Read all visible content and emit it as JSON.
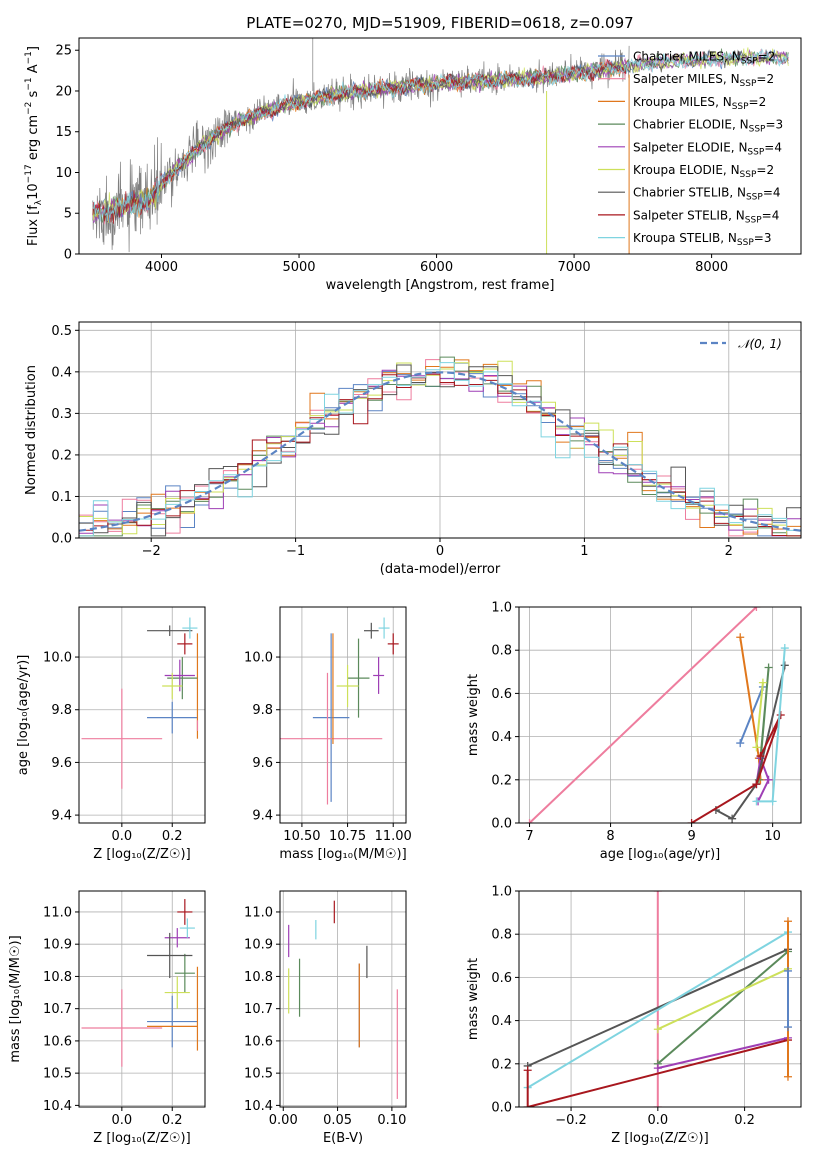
{
  "figure": {
    "title": "PLATE=0270, MJD=51909, FIBERID=0618, z=0.097"
  },
  "models": [
    {
      "name": "Chabrier MILES",
      "nssp": "2",
      "color": "#5b84c4"
    },
    {
      "name": "Salpeter MILES",
      "nssp": "2",
      "color": "#ee7d9e"
    },
    {
      "name": "Kroupa MILES",
      "nssp": "2",
      "color": "#e0771c"
    },
    {
      "name": "Chabrier ELODIE",
      "nssp": "3",
      "color": "#5b8a5b"
    },
    {
      "name": "Salpeter ELODIE",
      "nssp": "4",
      "color": "#9e3fb5"
    },
    {
      "name": "Kroupa ELODIE",
      "nssp": "2",
      "color": "#cde05a"
    },
    {
      "name": "Chabrier STELIB",
      "nssp": "4",
      "color": "#555555"
    },
    {
      "name": "Salpeter STELIB",
      "nssp": "4",
      "color": "#a8171e"
    },
    {
      "name": "Kroupa STELIB",
      "nssp": "3",
      "color": "#7fd4e0"
    }
  ],
  "data_color": "#7f7f7f",
  "chart_data": [
    {
      "id": "spectrum",
      "type": "line",
      "title": "PLATE=0270, MJD=51909, FIBERID=0618, z=0.097",
      "xlabel": "wavelength [Angstrom, rest frame]",
      "ylabel_main": "Flux [f",
      "ylabel_sub": "λ",
      "ylabel_rest": "10",
      "ylabel_exp1": "−17",
      "ylabel_units": " erg cm",
      "ylabel_exp2": "−2",
      "ylabel_s": " s",
      "ylabel_exp3": "−1",
      "ylabel_A": " A",
      "ylabel_exp4": "−1",
      "ylabel_end": "]",
      "xlim": [
        3400,
        8650
      ],
      "ylim": [
        0,
        26.5
      ],
      "xticks": [
        4000,
        5000,
        6000,
        7000,
        8000
      ],
      "yticks": [
        0,
        5,
        10,
        15,
        20,
        25
      ],
      "grid": false,
      "legend": "upper right",
      "legend_suffix_main": "N",
      "legend_suffix_sub": "SSP",
      "continuum_x": [
        3500,
        3600,
        3700,
        3800,
        3900,
        4000,
        4100,
        4200,
        4300,
        4400,
        4500,
        4600,
        4700,
        4800,
        4900,
        5000,
        5100,
        5200,
        5300,
        5400,
        5500,
        5600,
        5700,
        5800,
        5900,
        6000,
        6100,
        6200,
        6300,
        6400,
        6500,
        6600,
        6700,
        6800,
        6900,
        7000,
        7100,
        7200,
        7300,
        7400
      ],
      "continuum_y": [
        4.5,
        5.0,
        5.5,
        5.8,
        6.5,
        8.0,
        10.5,
        12.0,
        13.5,
        14.5,
        15.8,
        16.5,
        17.3,
        17.8,
        18.3,
        18.8,
        19.0,
        19.4,
        19.8,
        19.8,
        20.2,
        20.2,
        20.4,
        20.6,
        20.9,
        21.0,
        21.0,
        21.2,
        21.2,
        21.3,
        21.5,
        21.5,
        21.6,
        21.8,
        22.0,
        22.2,
        22.4,
        22.6,
        22.8,
        23.0
      ],
      "model_x": [
        3500,
        3700,
        3900,
        4100,
        4300,
        4500,
        4700,
        4900,
        5100,
        5300,
        5500,
        5700,
        5900,
        6100,
        6300,
        6500,
        6700,
        6900,
        7100,
        7300,
        7500,
        7700,
        7900,
        8100,
        8300,
        8500
      ],
      "model_y": [
        5.0,
        5.6,
        6.6,
        10.4,
        13.4,
        15.7,
        17.2,
        18.2,
        19.0,
        19.7,
        20.1,
        20.4,
        20.8,
        21.0,
        21.2,
        21.4,
        21.6,
        21.9,
        22.4,
        22.8,
        23.3,
        23.6,
        23.8,
        24.0,
        24.1,
        24.1
      ]
    },
    {
      "id": "residuals",
      "type": "histogram",
      "xlabel": "(data-model)/error",
      "ylabel": "Normed distribution",
      "xlim": [
        -2.5,
        2.5
      ],
      "ylim": [
        0,
        0.52
      ],
      "xticks": [
        -2,
        -1,
        0,
        1,
        2
      ],
      "xtick_labels": [
        "−2",
        "−1",
        "0",
        "1",
        "2"
      ],
      "yticks": [
        0.0,
        0.1,
        0.2,
        0.3,
        0.4,
        0.5
      ],
      "ytick_labels": [
        "0.0",
        "0.1",
        "0.2",
        "0.3",
        "0.4",
        "0.5"
      ],
      "grid": true,
      "legend": "upper right",
      "legend_label": "𝒩(0, 1)",
      "gaussian_color": "#5b84c4",
      "bin_edges_start": -2.5,
      "bin_width": 0.1
    },
    {
      "id": "age-vs-Z",
      "type": "errorbar",
      "xlabel": "Z [log₁₀(Z/Z☉)]",
      "ylabel": "age  [log₁₀(age/yr)]",
      "xlim": [
        -0.17,
        0.33
      ],
      "ylim": [
        9.37,
        10.19
      ],
      "xticks": [
        0.0,
        0.2
      ],
      "xtick_labels": [
        "0.0",
        "0.2"
      ],
      "yticks": [
        9.4,
        9.6,
        9.8,
        10.0
      ],
      "ytick_labels": [
        "9.4",
        "9.6",
        "9.8",
        "10.0"
      ],
      "grid": true,
      "points": [
        {
          "model": 0,
          "x": 0.2,
          "xerr": 0.1,
          "y": 9.77,
          "yerr": 0.06
        },
        {
          "model": 1,
          "x": 0.0,
          "xerr": 0.16,
          "y": 9.69,
          "yerr": 0.19
        },
        {
          "model": 2,
          "x": 0.3,
          "xerr": 0.0,
          "y": 9.89,
          "yerr": 0.2
        },
        {
          "model": 3,
          "x": 0.24,
          "xerr": 0.06,
          "y": 9.92,
          "yerr": 0.08
        },
        {
          "model": 4,
          "x": 0.23,
          "xerr": 0.06,
          "y": 9.93,
          "yerr": 0.06
        },
        {
          "model": 5,
          "x": 0.2,
          "xerr": 0.04,
          "y": 9.89,
          "yerr": 0.05
        },
        {
          "model": 6,
          "x": 0.19,
          "xerr": 0.09,
          "y": 10.1,
          "yerr": 0.02
        },
        {
          "model": 7,
          "x": 0.25,
          "xerr": 0.03,
          "y": 10.05,
          "yerr": 0.04
        },
        {
          "model": 8,
          "x": 0.27,
          "xerr": 0.03,
          "y": 10.11,
          "yerr": 0.04
        },
        {
          "model": 1,
          "x": 0.3,
          "xerr": 0.0,
          "y": 9.74,
          "yerr": 0.02
        }
      ]
    },
    {
      "id": "age-vs-mass",
      "type": "errorbar",
      "xlabel": "mass [log₁₀(M/M☉)]",
      "xlim": [
        10.38,
        11.07
      ],
      "ylim": [
        9.37,
        10.19
      ],
      "xticks": [
        10.5,
        10.75,
        11.0
      ],
      "xtick_labels": [
        "10.50",
        "10.75",
        "11.00"
      ],
      "yticks": [
        9.4,
        9.6,
        9.8,
        10.0
      ],
      "ytick_labels": [
        "9.4",
        "9.6",
        "9.8",
        "10.0"
      ],
      "grid": true,
      "points": [
        {
          "model": 0,
          "x": 10.66,
          "xerr": 0.1,
          "y": 9.77,
          "yerr": 0.32
        },
        {
          "model": 1,
          "x": 10.64,
          "xerr": 0.3,
          "y": 9.69,
          "yerr": 0.25
        },
        {
          "model": 2,
          "x": 10.67,
          "xerr": 0.0,
          "y": 9.88,
          "yerr": 0.21
        },
        {
          "model": 3,
          "x": 10.81,
          "xerr": 0.06,
          "y": 9.92,
          "yerr": 0.15
        },
        {
          "model": 4,
          "x": 10.92,
          "xerr": 0.03,
          "y": 9.93,
          "yerr": 0.07
        },
        {
          "model": 5,
          "x": 10.75,
          "xerr": 0.06,
          "y": 9.89,
          "yerr": 0.08
        },
        {
          "model": 6,
          "x": 10.88,
          "xerr": 0.04,
          "y": 10.1,
          "yerr": 0.03
        },
        {
          "model": 7,
          "x": 11.0,
          "xerr": 0.03,
          "y": 10.05,
          "yerr": 0.04
        },
        {
          "model": 8,
          "x": 10.95,
          "xerr": 0.03,
          "y": 10.11,
          "yerr": 0.04
        }
      ]
    },
    {
      "id": "massweight-vs-age",
      "type": "line",
      "xlabel": "age  [log₁₀(age/yr)]",
      "ylabel": "mass weight",
      "xlim": [
        6.87,
        10.35
      ],
      "ylim": [
        0,
        1.0
      ],
      "xticks": [
        7,
        8,
        9,
        10
      ],
      "xtick_labels": [
        "7",
        "8",
        "9",
        "10"
      ],
      "yticks": [
        0.0,
        0.2,
        0.4,
        0.6,
        0.8,
        1.0
      ],
      "ytick_labels": [
        "0.0",
        "0.2",
        "0.4",
        "0.6",
        "0.8",
        "1.0"
      ],
      "grid": true,
      "series": [
        {
          "model": 1,
          "x": [
            7.0,
            9.8
          ],
          "y": [
            0.0,
            1.0
          ]
        },
        {
          "model": 0,
          "x": [
            9.6,
            9.88
          ],
          "y": [
            0.37,
            0.63
          ]
        },
        {
          "model": 2,
          "x": [
            9.6,
            9.83,
            9.85
          ],
          "y": [
            0.86,
            0.3,
            0.2
          ]
        },
        {
          "model": 3,
          "x": [
            9.83,
            9.95,
            9.85
          ],
          "y": [
            0.2,
            0.72,
            0.3
          ]
        },
        {
          "model": 4,
          "x": [
            9.8,
            9.85,
            9.95,
            9.82
          ],
          "y": [
            0.18,
            0.3,
            0.2,
            0.1
          ]
        },
        {
          "model": 5,
          "x": [
            9.8,
            9.88
          ],
          "y": [
            0.35,
            0.65
          ]
        },
        {
          "model": 6,
          "x": [
            9.3,
            9.5,
            9.8,
            10.15
          ],
          "y": [
            0.06,
            0.02,
            0.18,
            0.73
          ]
        },
        {
          "model": 7,
          "x": [
            9.0,
            9.8,
            10.1,
            9.85
          ],
          "y": [
            0.0,
            0.18,
            0.5,
            0.31
          ]
        },
        {
          "model": 8,
          "x": [
            9.8,
            10.0,
            10.15
          ],
          "y": [
            0.1,
            0.1,
            0.81
          ]
        }
      ]
    },
    {
      "id": "mass-vs-Z",
      "type": "errorbar",
      "xlabel": "Z [log₁₀(Z/Z☉)]",
      "ylabel": "mass [log₁₀(M/M☉)]",
      "xlim": [
        -0.17,
        0.33
      ],
      "ylim": [
        10.395,
        11.065
      ],
      "xticks": [
        0.0,
        0.2
      ],
      "xtick_labels": [
        "0.0",
        "0.2"
      ],
      "yticks": [
        10.4,
        10.5,
        10.6,
        10.7,
        10.8,
        10.9,
        11.0
      ],
      "ytick_labels": [
        "10.4",
        "10.5",
        "10.6",
        "10.7",
        "10.8",
        "10.9",
        "11.0"
      ],
      "grid": true,
      "points": [
        {
          "model": 0,
          "x": 0.2,
          "xerr": 0.1,
          "y": 10.66,
          "yerr": 0.08
        },
        {
          "model": 1,
          "x": 0.0,
          "xerr": 0.16,
          "y": 10.64,
          "yerr": 0.12
        },
        {
          "model": 2,
          "x": 0.2,
          "xerr": 0.1,
          "y": 10.645,
          "yerr": 0.0
        },
        {
          "model": 2,
          "x": 0.3,
          "xerr": 0.0,
          "y": 10.7,
          "yerr": 0.13
        },
        {
          "model": 3,
          "x": 0.25,
          "xerr": 0.04,
          "y": 10.81,
          "yerr": 0.06
        },
        {
          "model": 4,
          "x": 0.22,
          "xerr": 0.05,
          "y": 10.92,
          "yerr": 0.03
        },
        {
          "model": 5,
          "x": 0.22,
          "xerr": 0.05,
          "y": 10.75,
          "yerr": 0.05
        },
        {
          "model": 6,
          "x": 0.19,
          "xerr": 0.09,
          "y": 10.865,
          "yerr": 0.07
        },
        {
          "model": 7,
          "x": 0.25,
          "xerr": 0.03,
          "y": 11.0,
          "yerr": 0.04
        },
        {
          "model": 8,
          "x": 0.26,
          "xerr": 0.03,
          "y": 10.95,
          "yerr": 0.03
        }
      ]
    },
    {
      "id": "mass-vs-ebv",
      "type": "errorbar",
      "xlabel": "E(B-V)",
      "xlim": [
        -0.003,
        0.113
      ],
      "ylim": [
        10.395,
        11.065
      ],
      "xticks": [
        0.0,
        0.05,
        0.1
      ],
      "xtick_labels": [
        "0.00",
        "0.05",
        "0.10"
      ],
      "yticks": [
        10.4,
        10.5,
        10.6,
        10.7,
        10.8,
        10.9,
        11.0
      ],
      "ytick_labels": [
        "10.4",
        "10.5",
        "10.6",
        "10.7",
        "10.8",
        "10.9",
        "11.0"
      ],
      "grid": true,
      "points": [
        {
          "model": 0,
          "x": 0.07,
          "xerr": 0.0,
          "y": 10.71,
          "yerr": 0.13
        },
        {
          "model": 1,
          "x": 0.105,
          "xerr": 0.0,
          "y": 10.59,
          "yerr": 0.17
        },
        {
          "model": 2,
          "x": 0.07,
          "xerr": 0.0,
          "y": 10.71,
          "yerr": 0.13
        },
        {
          "model": 3,
          "x": 0.015,
          "xerr": 0.0,
          "y": 10.765,
          "yerr": 0.09
        },
        {
          "model": 4,
          "x": 0.005,
          "xerr": 0.0,
          "y": 10.91,
          "yerr": 0.05
        },
        {
          "model": 5,
          "x": 0.005,
          "xerr": 0.0,
          "y": 10.755,
          "yerr": 0.07
        },
        {
          "model": 6,
          "x": 0.077,
          "xerr": 0.0,
          "y": 10.845,
          "yerr": 0.05
        },
        {
          "model": 7,
          "x": 0.047,
          "xerr": 0.0,
          "y": 11.0,
          "yerr": 0.035
        },
        {
          "model": 8,
          "x": 0.03,
          "xerr": 0.0,
          "y": 10.945,
          "yerr": 0.03
        }
      ]
    },
    {
      "id": "massweight-vs-Z",
      "type": "line",
      "xlabel": "Z [log₁₀(Z/Z☉)]",
      "ylabel": "mass weight",
      "xlim": [
        -0.32,
        0.33
      ],
      "ylim": [
        0,
        1.0
      ],
      "xticks": [
        -0.2,
        0.0,
        0.2
      ],
      "xtick_labels": [
        "−0.2",
        "0.0",
        "0.2"
      ],
      "yticks": [
        0.0,
        0.2,
        0.4,
        0.6,
        0.8,
        1.0
      ],
      "ytick_labels": [
        "0.0",
        "0.2",
        "0.4",
        "0.6",
        "0.8",
        "1.0"
      ],
      "grid": true,
      "series": [
        {
          "model": 1,
          "x": [
            0.0,
            0.0
          ],
          "y": [
            0.0,
            1.0
          ]
        },
        {
          "model": 6,
          "x": [
            -0.3,
            0.3
          ],
          "y": [
            0.19,
            0.73
          ]
        },
        {
          "model": 8,
          "x": [
            -0.3,
            0.3
          ],
          "y": [
            0.09,
            0.81
          ]
        },
        {
          "model": 3,
          "x": [
            0.0,
            0.3
          ],
          "y": [
            0.2,
            0.72
          ]
        },
        {
          "model": 5,
          "x": [
            0.0,
            0.3
          ],
          "y": [
            0.36,
            0.64
          ]
        },
        {
          "model": 4,
          "x": [
            0.0,
            0.3
          ],
          "y": [
            0.18,
            0.32
          ]
        },
        {
          "model": 7,
          "x": [
            -0.3,
            -0.3,
            0.3
          ],
          "y": [
            0.17,
            0.0,
            0.31
          ]
        },
        {
          "model": 2,
          "x": [
            0.3,
            0.3
          ],
          "y": [
            0.86,
            0.14
          ]
        },
        {
          "model": 0,
          "x": [
            0.3,
            0.3
          ],
          "y": [
            0.37,
            0.63
          ]
        }
      ]
    }
  ]
}
